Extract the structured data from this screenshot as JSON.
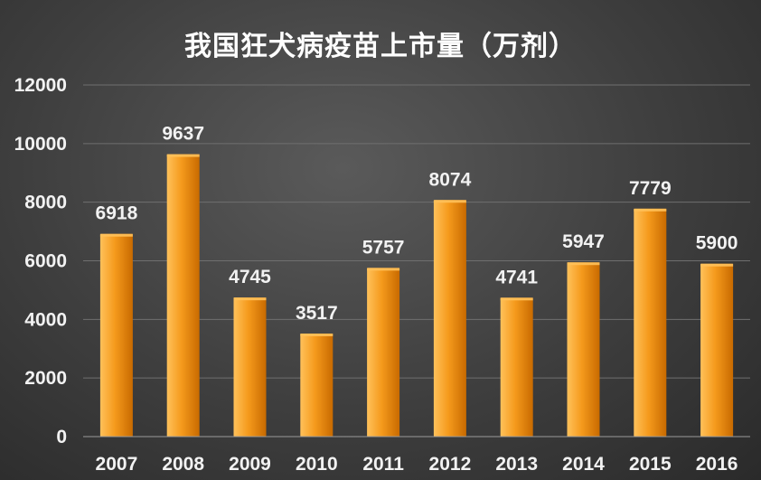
{
  "title": "我国狂犬病疫苗上市量（万剂）",
  "colors": {
    "bar_light": "#ffc15a",
    "bar_mid": "#f59a1c",
    "bar_dark": "#c86a00"
  },
  "chart_data": {
    "type": "bar",
    "title": "我国狂犬病疫苗上市量（万剂）",
    "xlabel": "",
    "ylabel": "",
    "categories": [
      "2007",
      "2008",
      "2009",
      "2010",
      "2011",
      "2012",
      "2013",
      "2014",
      "2015",
      "2016"
    ],
    "values": [
      6918,
      9637,
      4745,
      3517,
      5757,
      8074,
      4741,
      5947,
      7779,
      5900
    ],
    "data_labels": [
      "6918",
      "9637",
      "4745",
      "3517",
      "5757",
      "8074",
      "4741",
      "5947",
      "7779",
      "5900"
    ],
    "yticks": [
      0,
      2000,
      4000,
      6000,
      8000,
      10000,
      12000
    ],
    "ytick_labels": [
      "0",
      "2000",
      "4000",
      "6000",
      "8000",
      "10000",
      "12000"
    ],
    "ylim": [
      0,
      12000
    ],
    "grid": true,
    "legend": "none"
  }
}
